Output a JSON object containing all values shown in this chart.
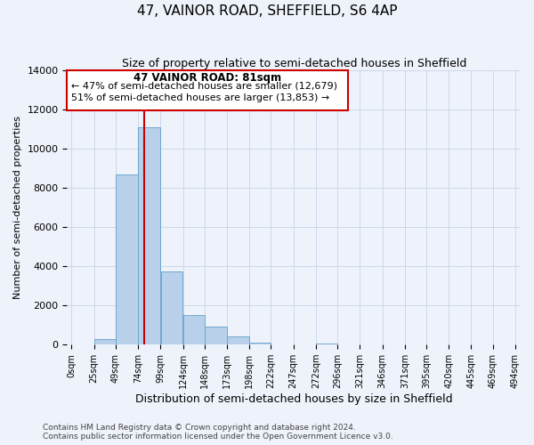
{
  "title": "47, VAINOR ROAD, SHEFFIELD, S6 4AP",
  "subtitle": "Size of property relative to semi-detached houses in Sheffield",
  "xlabel": "Distribution of semi-detached houses by size in Sheffield",
  "ylabel": "Number of semi-detached properties",
  "bin_edges": [
    0,
    25,
    49,
    74,
    99,
    124,
    148,
    173,
    198,
    222,
    247,
    272,
    296,
    321,
    346,
    371,
    395,
    420,
    445,
    469,
    494
  ],
  "bin_labels": [
    "0sqm",
    "25sqm",
    "49sqm",
    "74sqm",
    "99sqm",
    "124sqm",
    "148sqm",
    "173sqm",
    "198sqm",
    "222sqm",
    "247sqm",
    "272sqm",
    "296sqm",
    "321sqm",
    "346sqm",
    "371sqm",
    "395sqm",
    "420sqm",
    "445sqm",
    "469sqm",
    "494sqm"
  ],
  "counts": [
    0,
    300,
    8700,
    11100,
    3750,
    1500,
    900,
    400,
    100,
    0,
    0,
    75,
    0,
    0,
    0,
    0,
    0,
    0,
    0,
    0
  ],
  "bar_color": "#b8d0ea",
  "bar_edge_color": "#6fa8d0",
  "property_size": 81,
  "vline_color": "#cc0000",
  "annotation_title": "47 VAINOR ROAD: 81sqm",
  "annotation_line1": "← 47% of semi-detached houses are smaller (12,679)",
  "annotation_line2": "51% of semi-detached houses are larger (13,853) →",
  "annotation_box_color": "#cc0000",
  "ylim": [
    0,
    14000
  ],
  "yticks": [
    0,
    2000,
    4000,
    6000,
    8000,
    10000,
    12000,
    14000
  ],
  "grid_color": "#c8d4e8",
  "footer_line1": "Contains HM Land Registry data © Crown copyright and database right 2024.",
  "footer_line2": "Contains public sector information licensed under the Open Government Licence v3.0.",
  "background_color": "#eef2fa"
}
